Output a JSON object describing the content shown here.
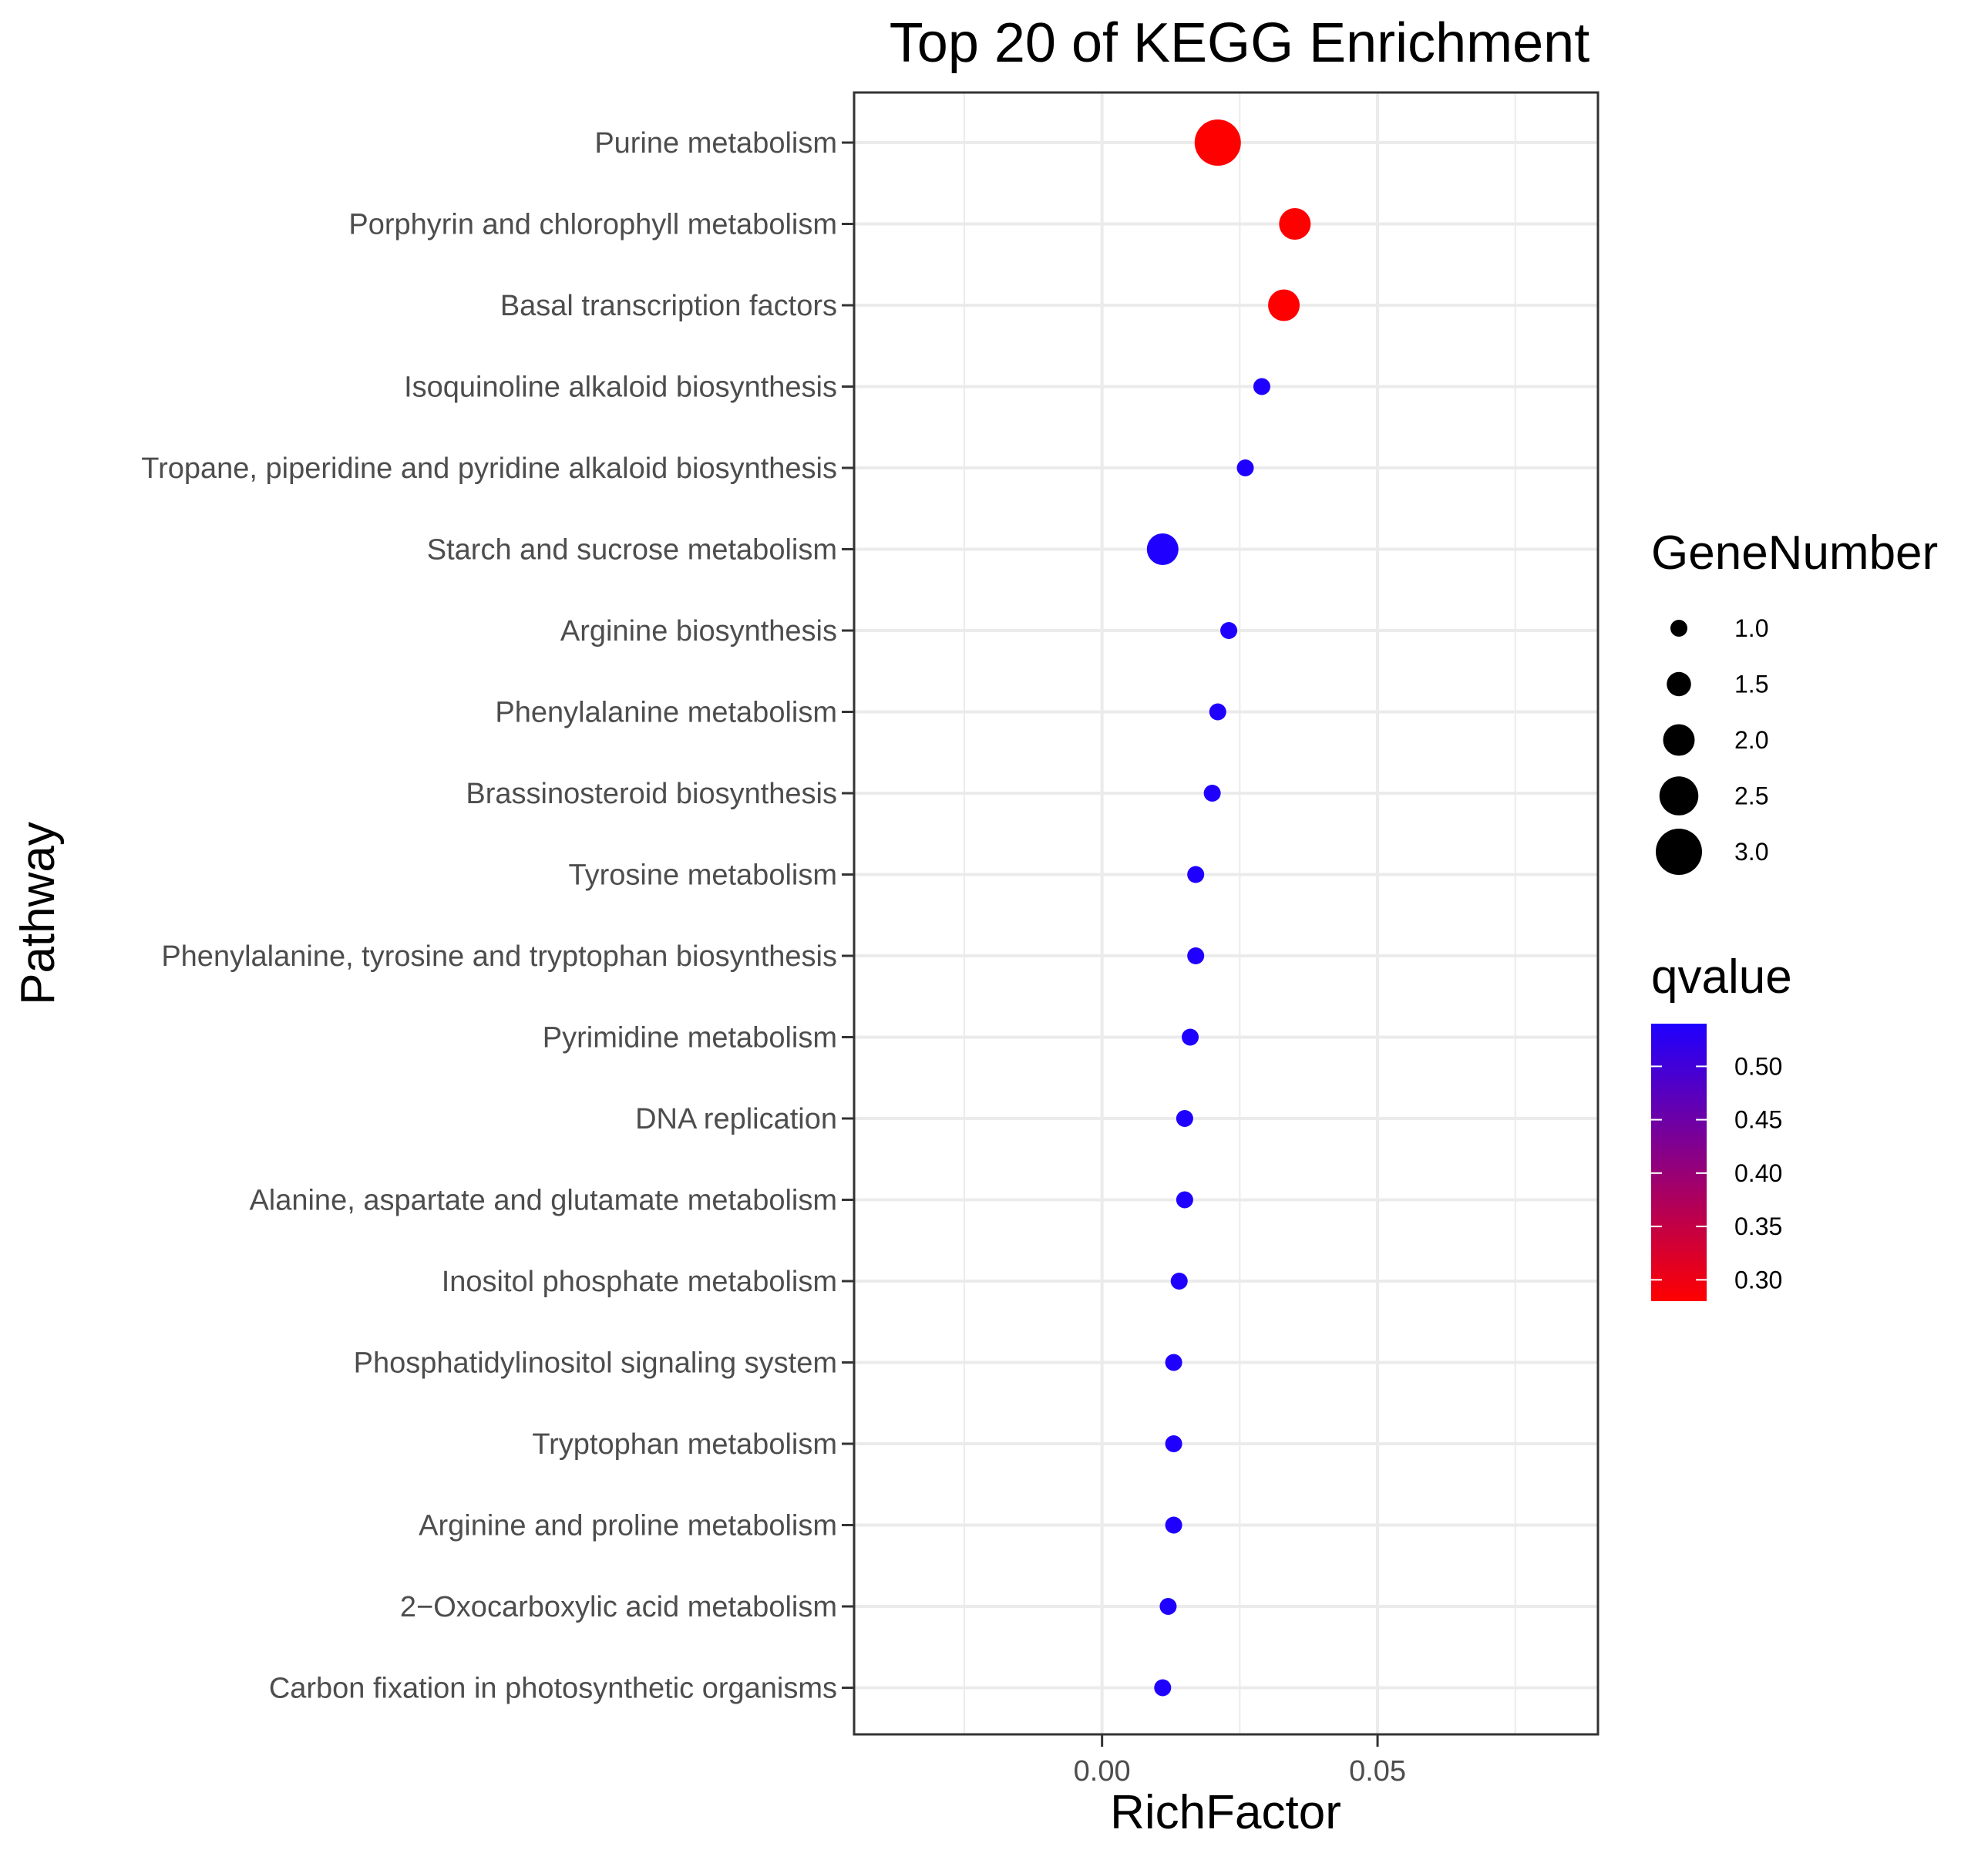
{
  "chart_data": {
    "type": "scatter",
    "title": "Top 20 of KEGG Enrichment",
    "xlabel": "RichFactor",
    "ylabel": "Pathway",
    "xlim": [
      -0.045,
      0.09
    ],
    "x_ticks": [
      0.0,
      0.05
    ],
    "x_tick_labels": [
      "0.00",
      "0.05"
    ],
    "grid": true,
    "size_legend": {
      "title": "GeneNumber",
      "values": [
        1.0,
        1.5,
        2.0,
        2.5,
        3.0
      ],
      "labels": [
        "1.0",
        "1.5",
        "2.0",
        "2.5",
        "3.0"
      ]
    },
    "color_legend": {
      "title": "qvalue",
      "range": [
        0.28,
        0.54
      ],
      "low_color": "#ff0000",
      "high_color": "#1f00ff",
      "ticks": [
        0.3,
        0.35,
        0.4,
        0.45,
        0.5
      ],
      "tick_labels": [
        "0.30",
        "0.35",
        "0.40",
        "0.45",
        "0.50"
      ]
    },
    "points": [
      {
        "pathway": "Purine metabolism",
        "richfactor": 0.021,
        "genes": 3,
        "qvalue": 0.28
      },
      {
        "pathway": "Porphyrin and chlorophyll metabolism",
        "richfactor": 0.035,
        "genes": 2,
        "qvalue": 0.28
      },
      {
        "pathway": "Basal transcription factors",
        "richfactor": 0.033,
        "genes": 2,
        "qvalue": 0.28
      },
      {
        "pathway": "Isoquinoline alkaloid biosynthesis",
        "richfactor": 0.029,
        "genes": 1,
        "qvalue": 0.54
      },
      {
        "pathway": "Tropane, piperidine and pyridine alkaloid biosynthesis",
        "richfactor": 0.026,
        "genes": 1,
        "qvalue": 0.54
      },
      {
        "pathway": "Starch and sucrose metabolism",
        "richfactor": 0.011,
        "genes": 2,
        "qvalue": 0.54
      },
      {
        "pathway": "Arginine biosynthesis",
        "richfactor": 0.023,
        "genes": 1,
        "qvalue": 0.54
      },
      {
        "pathway": "Phenylalanine metabolism",
        "richfactor": 0.021,
        "genes": 1,
        "qvalue": 0.54
      },
      {
        "pathway": "Brassinosteroid biosynthesis",
        "richfactor": 0.02,
        "genes": 1,
        "qvalue": 0.54
      },
      {
        "pathway": "Tyrosine metabolism",
        "richfactor": 0.017,
        "genes": 1,
        "qvalue": 0.54
      },
      {
        "pathway": "Phenylalanine, tyrosine and tryptophan biosynthesis",
        "richfactor": 0.017,
        "genes": 1,
        "qvalue": 0.54
      },
      {
        "pathway": "Pyrimidine metabolism",
        "richfactor": 0.016,
        "genes": 1,
        "qvalue": 0.54
      },
      {
        "pathway": "DNA replication",
        "richfactor": 0.015,
        "genes": 1,
        "qvalue": 0.54
      },
      {
        "pathway": "Alanine, aspartate and glutamate metabolism",
        "richfactor": 0.015,
        "genes": 1,
        "qvalue": 0.54
      },
      {
        "pathway": "Inositol phosphate metabolism",
        "richfactor": 0.014,
        "genes": 1,
        "qvalue": 0.54
      },
      {
        "pathway": "Phosphatidylinositol signaling system",
        "richfactor": 0.013,
        "genes": 1,
        "qvalue": 0.54
      },
      {
        "pathway": "Tryptophan metabolism",
        "richfactor": 0.013,
        "genes": 1,
        "qvalue": 0.54
      },
      {
        "pathway": "Arginine and proline metabolism",
        "richfactor": 0.013,
        "genes": 1,
        "qvalue": 0.54
      },
      {
        "pathway": "2−Oxocarboxylic acid metabolism",
        "richfactor": 0.012,
        "genes": 1,
        "qvalue": 0.54
      },
      {
        "pathway": "Carbon fixation in photosynthetic organisms",
        "richfactor": 0.011,
        "genes": 1,
        "qvalue": 0.54
      }
    ]
  }
}
